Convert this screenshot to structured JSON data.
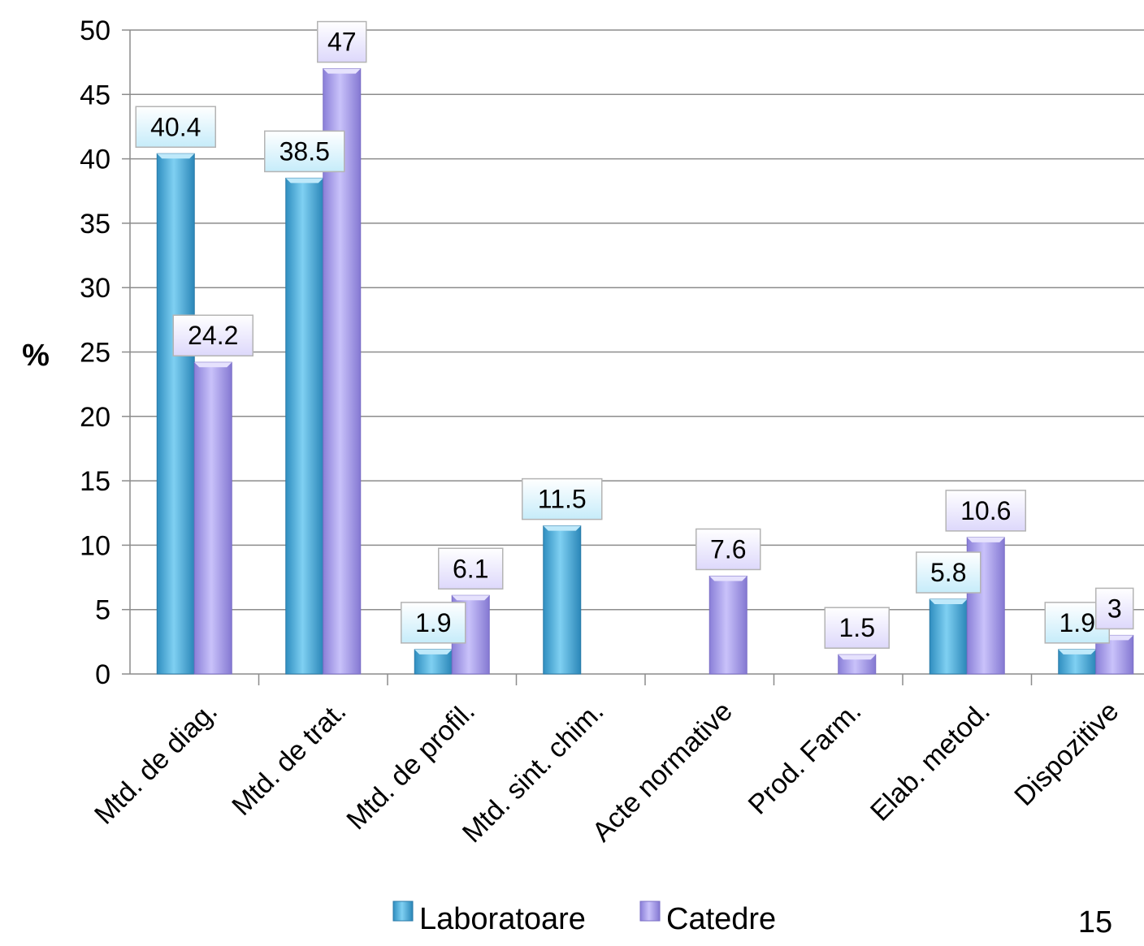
{
  "page_number": "15",
  "chart_data": {
    "type": "bar",
    "ylabel": "%",
    "ylim": [
      0,
      50
    ],
    "yticks": [
      0,
      5,
      10,
      15,
      20,
      25,
      30,
      35,
      40,
      45,
      50
    ],
    "grid": true,
    "legend_position": "bottom",
    "categories": [
      "Mtd. de diag.",
      "Mtd. de trat.",
      "Mtd. de profil.",
      "Mtd. sint. chim.",
      "Acte normative",
      "Prod. Farm.",
      "Elab. metod.",
      "Dispozitive"
    ],
    "series": [
      {
        "name": "Laboratoare",
        "color": "#4fb3e0",
        "values": [
          40.4,
          38.5,
          1.9,
          11.5,
          null,
          null,
          5.8,
          1.9
        ]
      },
      {
        "name": "Catedre",
        "color": "#a79ee6",
        "values": [
          24.2,
          47,
          6.1,
          null,
          7.6,
          1.5,
          10.6,
          3
        ]
      }
    ]
  }
}
